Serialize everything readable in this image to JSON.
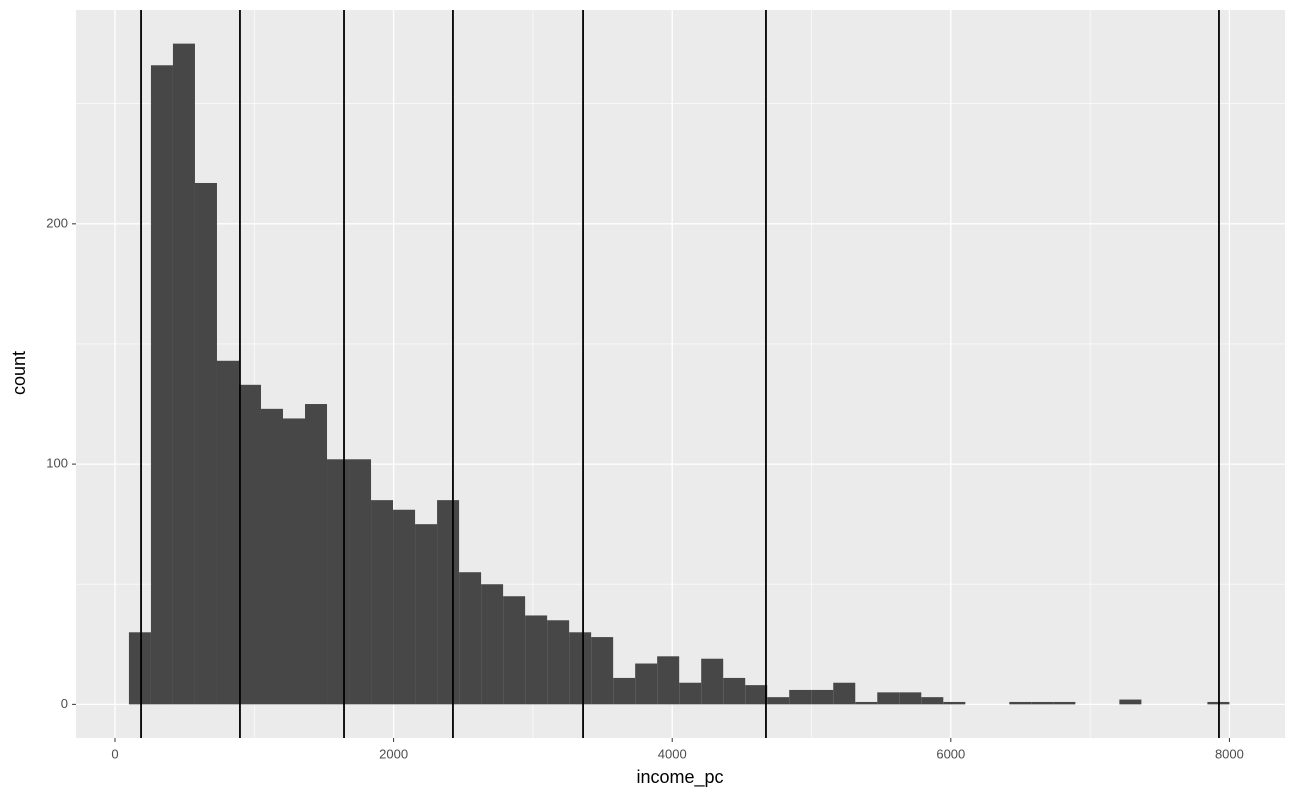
{
  "chart_data": {
    "type": "histogram",
    "x_label": "income_pc",
    "y_label": "count",
    "bins": [
      100,
      258,
      416,
      574,
      732,
      890,
      1048,
      1206,
      1364,
      1522,
      1680,
      1838,
      1996,
      2154,
      2312,
      2470,
      2628,
      2786,
      2944,
      3102,
      3260,
      3418,
      3576,
      3734,
      3892,
      4050,
      4208,
      4366,
      4524,
      4682,
      4840,
      4998,
      5156,
      5314,
      5472,
      5630,
      5788,
      5946,
      6104,
      6262,
      6420,
      6578,
      6736,
      6894,
      7052,
      7210,
      7368,
      7526,
      7684,
      7842,
      8000
    ],
    "values": [
      30,
      266,
      275,
      217,
      143,
      133,
      123,
      119,
      125,
      102,
      102,
      85,
      81,
      75,
      85,
      55,
      50,
      45,
      37,
      35,
      30,
      28,
      11,
      17,
      20,
      9,
      19,
      11,
      8,
      3,
      6,
      6,
      9,
      1,
      5,
      5,
      3,
      1,
      0,
      0,
      1,
      1,
      1,
      0,
      0,
      2,
      0,
      0,
      0,
      1
    ],
    "color": "#474747",
    "vlines": [
      187,
      897,
      1644,
      2426,
      3360,
      4673,
      7925
    ],
    "vline_color": "#000000",
    "xlim": [
      -280,
      8399
    ],
    "ylim": [
      -14,
      289
    ],
    "xticks": [
      0,
      2000,
      4000,
      6000,
      8000
    ],
    "yticks": [
      0,
      100,
      200
    ],
    "x_minor_grid": [
      1000,
      3000,
      5000,
      7000
    ],
    "y_minor_grid": [
      50,
      150,
      250
    ],
    "grid": true
  }
}
